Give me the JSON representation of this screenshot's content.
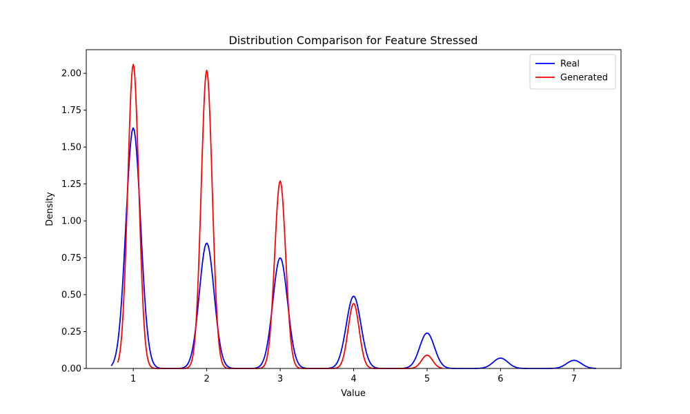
{
  "chart_data": {
    "type": "line",
    "title": "Distribution Comparison for Feature Stressed",
    "xlabel": "Value",
    "ylabel": "Density",
    "xlim": [
      0.36,
      7.64
    ],
    "ylim": [
      0,
      2.16
    ],
    "xticks": [
      1,
      2,
      3,
      4,
      5,
      6,
      7
    ],
    "xtick_labels": [
      "1",
      "2",
      "3",
      "4",
      "5",
      "6",
      "7"
    ],
    "yticks": [
      0,
      0.25,
      0.5,
      0.75,
      1.0,
      1.25,
      1.5,
      1.75,
      2.0
    ],
    "ytick_labels": [
      "0.00",
      "0.25",
      "0.50",
      "0.75",
      "1.00",
      "1.25",
      "1.50",
      "1.75",
      "2.00"
    ],
    "grid": false,
    "legend_position": "top-right",
    "series": [
      {
        "name": "Real",
        "color": "#0000ff",
        "x_range": [
          0.7,
          7.3
        ],
        "sigma": 0.1,
        "peaks": [
          {
            "x": 1,
            "y": 1.63
          },
          {
            "x": 2,
            "y": 0.85
          },
          {
            "x": 3,
            "y": 0.75
          },
          {
            "x": 4,
            "y": 0.49
          },
          {
            "x": 5,
            "y": 0.24
          },
          {
            "x": 6,
            "y": 0.07
          },
          {
            "x": 7,
            "y": 0.055
          }
        ]
      },
      {
        "name": "Generated",
        "color": "#ff0000",
        "x_range": [
          0.79,
          5.21
        ],
        "sigma": 0.075,
        "peaks": [
          {
            "x": 1,
            "y": 2.06
          },
          {
            "x": 2,
            "y": 2.02
          },
          {
            "x": 3,
            "y": 1.27
          },
          {
            "x": 4,
            "y": 0.44
          },
          {
            "x": 5,
            "y": 0.09
          }
        ]
      }
    ]
  }
}
